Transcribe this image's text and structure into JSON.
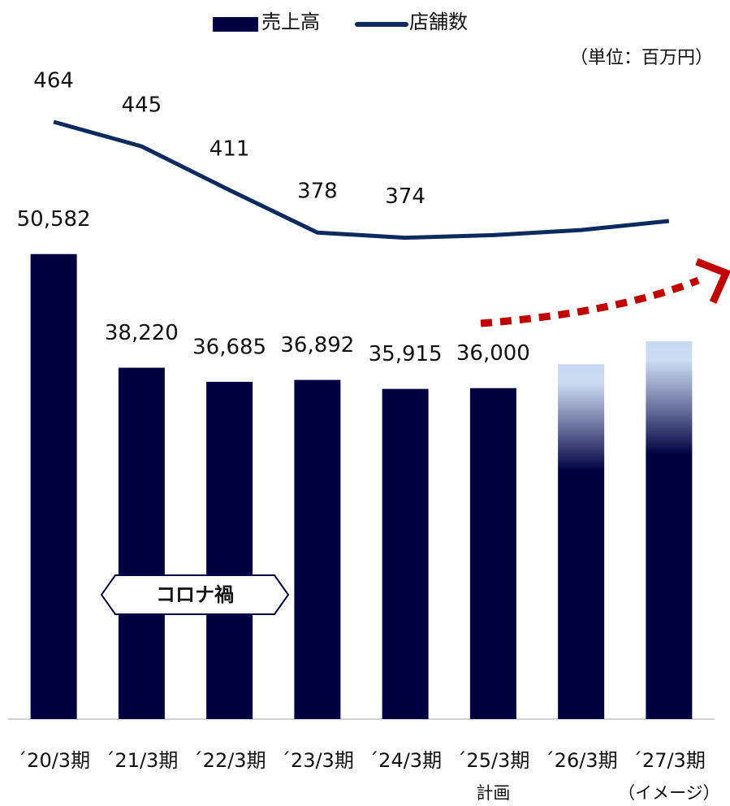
{
  "chart_data": {
    "type": "bar_line",
    "categories": [
      "´20/3期",
      "´21/3期",
      "´22/3期",
      "´23/3期",
      "´24/3期",
      "´25/3期",
      "´26/3期",
      "´27/3期"
    ],
    "category_notes": [
      null,
      null,
      null,
      null,
      null,
      "計画",
      null,
      "（イメージ）"
    ],
    "series": [
      {
        "name": "売上高",
        "type": "bar",
        "color": "#000040",
        "gradient_color": "#c8d8f2",
        "gradient_indices": [
          6,
          7
        ],
        "values": [
          50582,
          38220,
          36685,
          36892,
          35915,
          36000,
          38600,
          41100
        ],
        "value_labels": [
          "50,582",
          "38,220",
          "36,685",
          "36,892",
          "35,915",
          "36,000",
          null,
          null
        ]
      },
      {
        "name": "店舗数",
        "type": "line",
        "axis": "y2",
        "color": "#0b2a5e",
        "values": [
          464,
          445,
          411,
          378,
          374,
          376,
          380,
          387
        ],
        "value_labels": [
          "464",
          "445",
          "411",
          "378",
          "374",
          null,
          null,
          null
        ]
      }
    ],
    "ylim": [
      0,
      70000
    ],
    "y2lim": [
      0,
      500
    ],
    "unit_note": "（単位：百万円）",
    "annotation": "コロナ禍",
    "legend": "top"
  }
}
